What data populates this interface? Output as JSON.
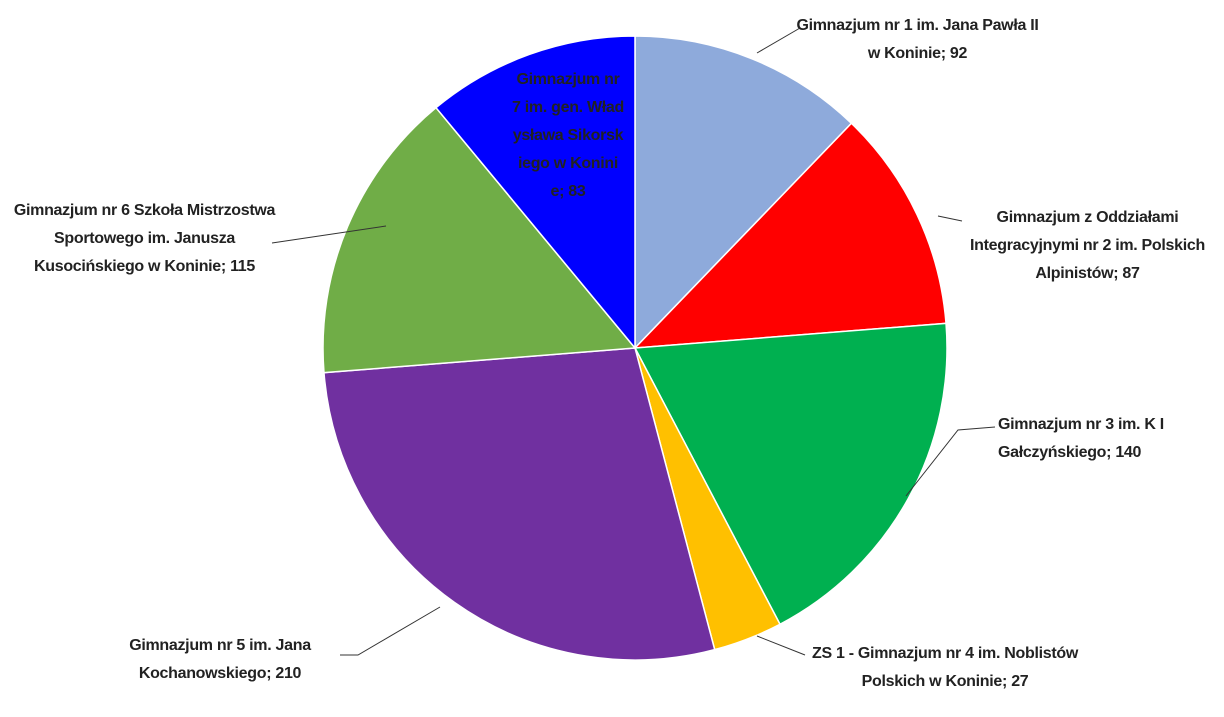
{
  "chart_data": {
    "type": "pie",
    "values": [
      92,
      87,
      140,
      27,
      210,
      115,
      83
    ],
    "value_labels": [
      "Gimnazjum nr 1 im. Jana Pawła II w Koninie; 92",
      "Gimnazjum z Oddziałami Integracyjnymi nr 2 im. Polskich Alpinistów; 87",
      "Gimnazjum nr 3 im. K I Gałczyńskiego; 140",
      "ZS 1 - Gimnazjum nr 4 im. Noblistów Polskich w Koninie; 27",
      "Gimnazjum nr 5 im. Jana Kochanowskiego; 210",
      "Gimnazjum nr 6 Szkoła Mistrzostwa Sportowego im. Janusza Kusocińskiego w Koninie; 115",
      "Gimnazjum nr 7 im. gen. Władysława Sikorskiego w Koninie; 83"
    ],
    "colors": [
      "#8eaadb",
      "#ff0000",
      "#00b050",
      "#ffc000",
      "#7030a0",
      "#70ad47",
      "#0000ff"
    ]
  }
}
